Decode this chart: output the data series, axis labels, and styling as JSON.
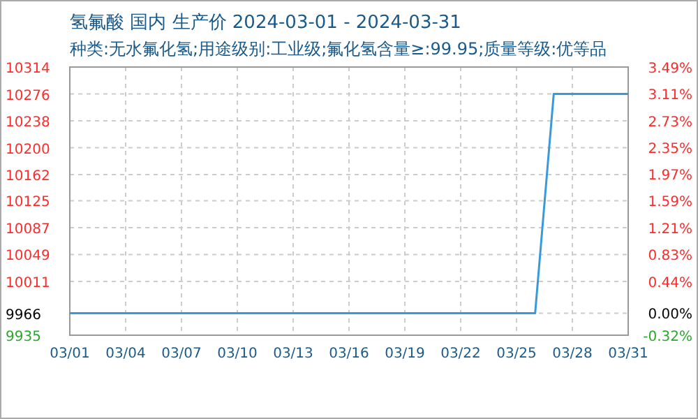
{
  "chart_data": {
    "type": "line",
    "title": "氢氟酸 国内 生产价 2024-03-01 - 2024-03-31",
    "subtitle": "种类:无水氟化氢;用途级别:工业级;氟化氢含量≥:99.95;质量等级:优等品",
    "series": [
      {
        "color": "#3a9ad9",
        "x": [
          "2024-03-01",
          "2024-03-26",
          "2024-03-27",
          "2024-03-31"
        ],
        "values": [
          9966,
          9966,
          10276,
          10276
        ]
      }
    ],
    "xlim": [
      "2024-03-01",
      "2024-03-31"
    ],
    "xticks": [
      {
        "value": "2024-03-01",
        "label": "03/01"
      },
      {
        "value": "2024-03-04",
        "label": "03/04"
      },
      {
        "value": "2024-03-07",
        "label": "03/07"
      },
      {
        "value": "2024-03-10",
        "label": "03/10"
      },
      {
        "value": "2024-03-13",
        "label": "03/13"
      },
      {
        "value": "2024-03-16",
        "label": "03/16"
      },
      {
        "value": "2024-03-19",
        "label": "03/19"
      },
      {
        "value": "2024-03-22",
        "label": "03/22"
      },
      {
        "value": "2024-03-25",
        "label": "03/25"
      },
      {
        "value": "2024-03-28",
        "label": "03/28"
      },
      {
        "value": "2024-03-31",
        "label": "03/31"
      }
    ],
    "ylim": [
      9935,
      10314
    ],
    "yticks": [
      9935,
      9966,
      10011,
      10049,
      10087,
      10125,
      10162,
      10200,
      10238,
      10276,
      10314
    ],
    "y2lim": [
      -0.32,
      3.49
    ],
    "y2ticks": [
      {
        "value": -0.32,
        "label": "-0.32%"
      },
      {
        "value": 0,
        "label": "0.00%"
      },
      {
        "value": 0.44,
        "label": "0.44%"
      },
      {
        "value": 0.83,
        "label": "0.83%"
      },
      {
        "value": 1.21,
        "label": "1.21%"
      },
      {
        "value": 1.59,
        "label": "1.59%"
      },
      {
        "value": 1.97,
        "label": "1.97%"
      },
      {
        "value": 2.35,
        "label": "2.35%"
      },
      {
        "value": 2.73,
        "label": "2.73%"
      },
      {
        "value": 3.11,
        "label": "3.11%"
      },
      {
        "value": 3.49,
        "label": "3.49%"
      }
    ],
    "grid": true
  }
}
